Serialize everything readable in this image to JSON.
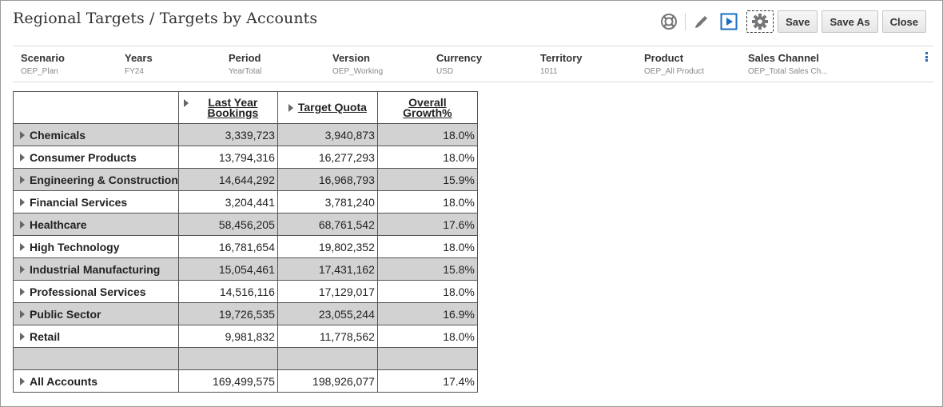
{
  "window": {
    "title": "Regional Targets / Targets by Accounts"
  },
  "toolbar": {
    "icons": [
      "help-lifebuoy-icon",
      "edit-pencil-icon",
      "run-play-icon",
      "settings-gear-icon"
    ],
    "save_label": "Save",
    "save_as_label": "Save As",
    "close_label": "Close",
    "accent_color": "#1a6fc2"
  },
  "pov": [
    {
      "label": "Scenario",
      "value": "OEP_Plan"
    },
    {
      "label": "Years",
      "value": "FY24"
    },
    {
      "label": "Period",
      "value": "YearTotal"
    },
    {
      "label": "Version",
      "value": "OEP_Working"
    },
    {
      "label": "Currency",
      "value": "USD"
    },
    {
      "label": "Territory",
      "value": "1011"
    },
    {
      "label": "Product",
      "value": "OEP_All Product"
    },
    {
      "label": "Sales Channel",
      "value": "OEP_Total Sales Ch..."
    }
  ],
  "grid": {
    "columns": [
      "Last Year Bookings",
      "Target Quota",
      "Overall Growth%"
    ],
    "rows": [
      {
        "label": "Chemicals",
        "values": [
          "3,339,723",
          "3,940,873",
          "18.0%"
        ]
      },
      {
        "label": "Consumer Products",
        "values": [
          "13,794,316",
          "16,277,293",
          "18.0%"
        ]
      },
      {
        "label": "Engineering & Construction",
        "values": [
          "14,644,292",
          "16,968,793",
          "15.9%"
        ]
      },
      {
        "label": "Financial Services",
        "values": [
          "3,204,441",
          "3,781,240",
          "18.0%"
        ]
      },
      {
        "label": "Healthcare",
        "values": [
          "58,456,205",
          "68,761,542",
          "17.6%"
        ]
      },
      {
        "label": "High Technology",
        "values": [
          "16,781,654",
          "19,802,352",
          "18.0%"
        ]
      },
      {
        "label": "Industrial Manufacturing",
        "values": [
          "15,054,461",
          "17,431,162",
          "15.8%"
        ]
      },
      {
        "label": "Professional Services",
        "values": [
          "14,516,116",
          "17,129,017",
          "18.0%"
        ]
      },
      {
        "label": "Public Sector",
        "values": [
          "19,726,535",
          "23,055,244",
          "16.9%"
        ]
      },
      {
        "label": "Retail",
        "values": [
          "9,981,832",
          "11,778,562",
          "18.0%"
        ]
      }
    ],
    "total": {
      "label": "All Accounts",
      "values": [
        "169,499,575",
        "198,926,077",
        "17.4%"
      ]
    },
    "shade_color": "#d2d2d2"
  }
}
